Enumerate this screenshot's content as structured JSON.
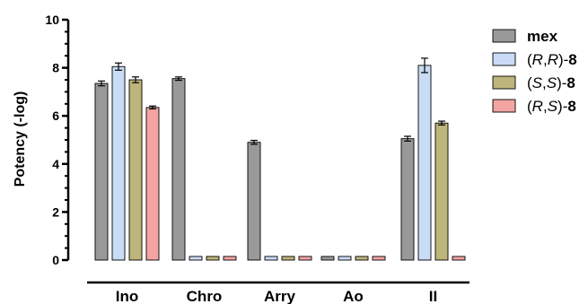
{
  "chart_data": {
    "type": "bar",
    "title": "",
    "xlabel": "",
    "ylabel": "Potency (-log)",
    "ylim": [
      0,
      10
    ],
    "yticks": [
      "0",
      "2",
      "4",
      "6",
      "8",
      "10"
    ],
    "grid": false,
    "legend_position": "right",
    "categories": [
      "Ino",
      "Chro",
      "Arry",
      "Ao",
      "II"
    ],
    "series": [
      {
        "name_parts": [
          {
            "t": "mex",
            "b": true
          }
        ],
        "color": "#999999",
        "values": [
          7.35,
          7.55,
          4.9,
          0.15,
          5.05
        ],
        "errors": [
          0.1,
          0.07,
          0.08,
          0,
          0.1
        ]
      },
      {
        "name_parts": [
          {
            "t": "("
          },
          {
            "t": "R",
            "i": true
          },
          {
            "t": ","
          },
          {
            "t": "R",
            "i": true
          },
          {
            "t": ")-"
          },
          {
            "t": "8",
            "b": true
          }
        ],
        "color": "#c9dbf5",
        "values": [
          8.05,
          0.15,
          0.15,
          0.15,
          8.1
        ],
        "errors": [
          0.15,
          0,
          0,
          0,
          0.3
        ]
      },
      {
        "name_parts": [
          {
            "t": "("
          },
          {
            "t": "S",
            "i": true
          },
          {
            "t": ","
          },
          {
            "t": "S",
            "i": true
          },
          {
            "t": ")-"
          },
          {
            "t": "8",
            "b": true
          }
        ],
        "color": "#beb57c",
        "values": [
          7.5,
          0.15,
          0.15,
          0.15,
          5.7
        ],
        "errors": [
          0.12,
          0,
          0,
          0,
          0.08
        ]
      },
      {
        "name_parts": [
          {
            "t": "("
          },
          {
            "t": "R",
            "i": true
          },
          {
            "t": ","
          },
          {
            "t": "S",
            "i": true
          },
          {
            "t": ")-"
          },
          {
            "t": "8",
            "b": true
          }
        ],
        "color": "#f4a3a3",
        "values": [
          6.35,
          0.15,
          0.15,
          0.15,
          0.15
        ],
        "errors": [
          0.06,
          0,
          0,
          0,
          0
        ]
      }
    ]
  }
}
